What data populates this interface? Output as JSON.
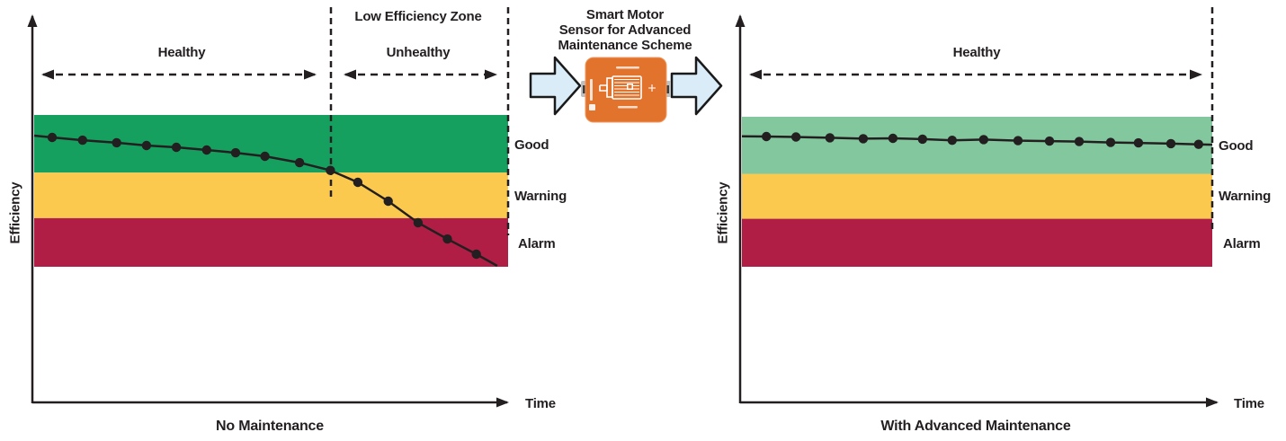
{
  "colors": {
    "band_good_left": "#16A05F",
    "band_good_right": "#83C79E",
    "band_warning": "#FAC94E",
    "band_alarm": "#B01E45",
    "line": "#231F20",
    "flow_arrow_fill": "#D9ECF8",
    "flow_arrow_stroke": "#1A1A1A",
    "sensor_body": "#E2732D"
  },
  "left_chart": {
    "zone_title": "Low Efficiency Zone",
    "healthy_label": "Healthy",
    "unhealthy_label": "Unhealthy",
    "band_labels": {
      "good": "Good",
      "warning": "Warning",
      "alarm": "Alarm"
    },
    "y_axis_label": "Efficiency",
    "x_axis_label": "Time",
    "caption": "No Maintenance"
  },
  "center": {
    "title_lines": [
      "Smart Motor",
      "Sensor for Advanced",
      "Maintenance Scheme"
    ]
  },
  "right_chart": {
    "healthy_label": "Healthy",
    "band_labels": {
      "good": "Good",
      "warning": "Warning",
      "alarm": "Alarm"
    },
    "y_axis_label": "Efficiency",
    "x_axis_label": "Time",
    "caption": "With Advanced Maintenance"
  },
  "chart_data": [
    {
      "id": "no_maintenance",
      "type": "line",
      "title": "No Maintenance",
      "xlabel": "Time",
      "ylabel": "Efficiency",
      "x_range": [
        0,
        1
      ],
      "y_units": "relative efficiency: 0 = bottom of Alarm band, 100 = top of Good band (no numeric ticks shown in figure)",
      "grid": false,
      "legend": false,
      "bands": [
        {
          "label": "Good",
          "from": 62,
          "to": 100,
          "color_key": "band_good_left"
        },
        {
          "label": "Warning",
          "from": 32,
          "to": 62,
          "color_key": "band_warning"
        },
        {
          "label": "Alarm",
          "from": 0,
          "to": 32,
          "color_key": "band_alarm"
        }
      ],
      "zones": [
        {
          "label": "Healthy",
          "x_from": 0,
          "x_to": 0.625
        },
        {
          "label": "Unhealthy",
          "x_from": 0.625,
          "x_to": 1
        }
      ],
      "points": [
        {
          "x": 0.0,
          "y": 86.4,
          "dot": false
        },
        {
          "x": 0.038,
          "y": 85.2,
          "dot": true
        },
        {
          "x": 0.102,
          "y": 83.4,
          "dot": true
        },
        {
          "x": 0.174,
          "y": 81.7,
          "dot": true
        },
        {
          "x": 0.237,
          "y": 79.9,
          "dot": true
        },
        {
          "x": 0.3,
          "y": 78.7,
          "dot": true
        },
        {
          "x": 0.364,
          "y": 76.9,
          "dot": true
        },
        {
          "x": 0.425,
          "y": 75.1,
          "dot": true
        },
        {
          "x": 0.487,
          "y": 72.8,
          "dot": true
        },
        {
          "x": 0.56,
          "y": 68.6,
          "dot": true
        },
        {
          "x": 0.625,
          "y": 63.5,
          "dot": true
        },
        {
          "x": 0.683,
          "y": 55.6,
          "dot": true
        },
        {
          "x": 0.747,
          "y": 43.2,
          "dot": true
        },
        {
          "x": 0.81,
          "y": 29.0,
          "dot": true
        },
        {
          "x": 0.872,
          "y": 18.3,
          "dot": true
        },
        {
          "x": 0.933,
          "y": 8.3,
          "dot": true
        },
        {
          "x": 0.977,
          "y": 0.6,
          "dot": false
        }
      ]
    },
    {
      "id": "with_maintenance",
      "type": "line",
      "title": "With Advanced Maintenance",
      "xlabel": "Time",
      "ylabel": "Efficiency",
      "x_range": [
        0,
        1
      ],
      "y_units": "relative efficiency: 0 = bottom of Alarm band, 100 = top of Good band (no numeric ticks shown in figure)",
      "grid": false,
      "legend": false,
      "bands": [
        {
          "label": "Good",
          "from": 62,
          "to": 100,
          "color_key": "band_good_right"
        },
        {
          "label": "Warning",
          "from": 32,
          "to": 62,
          "color_key": "band_warning"
        },
        {
          "label": "Alarm",
          "from": 0,
          "to": 32,
          "color_key": "band_alarm"
        }
      ],
      "zones": [
        {
          "label": "Healthy",
          "x_from": 0,
          "x_to": 1
        }
      ],
      "points": [
        {
          "x": 0.0,
          "y": 87.0,
          "dot": false
        },
        {
          "x": 0.052,
          "y": 86.8,
          "dot": true
        },
        {
          "x": 0.115,
          "y": 86.5,
          "dot": true
        },
        {
          "x": 0.187,
          "y": 86.0,
          "dot": true
        },
        {
          "x": 0.258,
          "y": 85.4,
          "dot": true
        },
        {
          "x": 0.321,
          "y": 85.6,
          "dot": true
        },
        {
          "x": 0.384,
          "y": 85.1,
          "dot": true
        },
        {
          "x": 0.447,
          "y": 84.3,
          "dot": true
        },
        {
          "x": 0.514,
          "y": 84.8,
          "dot": true
        },
        {
          "x": 0.587,
          "y": 84.1,
          "dot": true
        },
        {
          "x": 0.654,
          "y": 83.8,
          "dot": true
        },
        {
          "x": 0.717,
          "y": 83.5,
          "dot": true
        },
        {
          "x": 0.784,
          "y": 82.9,
          "dot": true
        },
        {
          "x": 0.843,
          "y": 82.6,
          "dot": true
        },
        {
          "x": 0.912,
          "y": 82.1,
          "dot": true
        },
        {
          "x": 0.971,
          "y": 81.6,
          "dot": true
        },
        {
          "x": 1.0,
          "y": 81.4,
          "dot": false
        }
      ]
    }
  ]
}
